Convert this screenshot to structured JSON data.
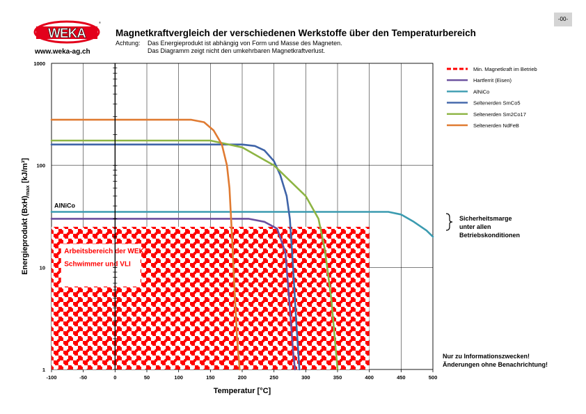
{
  "header": {
    "page_number": "-00-",
    "logo_text": "WEKA",
    "logo_url": "www.weka-ag.ch",
    "title": "Magnetkraftvergleich der verschiedenen Werkstoffe über den Temperaturbereich",
    "note_prefix": "Achtung:",
    "note_line1": "Das Energieprodukt ist abhängig von Form und Masse des Magneten.",
    "note_line2": "Das Diagramm zeigt nicht den umkehrbaren Magnetkraftverlust."
  },
  "colors": {
    "logo_red": "#e3001b",
    "grid": "#000000",
    "min_force": "#ff0000",
    "hartferrit": "#6a4f9e",
    "alnico": "#3b9bb0",
    "smco5": "#3f64a8",
    "sm2co17": "#8db443",
    "ndfeb": "#e07b32",
    "checker_red": "#ff0000",
    "checker_white": "#ffffff"
  },
  "chart_data": {
    "type": "line",
    "xlabel": "Temperatur [°C]",
    "ylabel": "Energieprodukt (BxH)max [kJ/m³]",
    "ylabel_main": "Energieprodukt  (BxH)",
    "ylabel_sub": "max",
    "ylabel_unit": " [kJ/m³]",
    "xlim": [
      -100,
      500
    ],
    "ylim": [
      1,
      1000
    ],
    "yscale": "log",
    "x_ticks": [
      -100,
      -50,
      0,
      50,
      100,
      150,
      200,
      250,
      300,
      350,
      400,
      450,
      500
    ],
    "y_ticks": [
      1,
      10,
      100,
      1000
    ],
    "grid": true,
    "legend_position": "right",
    "series": [
      {
        "name": "Min. Magnetkraft im Betrieb",
        "style": "dashed",
        "color_key": "min_force",
        "points": []
      },
      {
        "name": "Hartferrit (Eisen)",
        "color_key": "hartferrit",
        "points": [
          [
            -100,
            30
          ],
          [
            210,
            30
          ],
          [
            235,
            28
          ],
          [
            255,
            24
          ],
          [
            268,
            14
          ],
          [
            275,
            4
          ],
          [
            280,
            1.5
          ],
          [
            283,
            1
          ]
        ]
      },
      {
        "name": "AlNiCo",
        "color_key": "alnico",
        "points": [
          [
            -100,
            35
          ],
          [
            430,
            35
          ],
          [
            450,
            33
          ],
          [
            470,
            28
          ],
          [
            490,
            23
          ],
          [
            500,
            20
          ]
        ]
      },
      {
        "name": "Seltenerden SmCo5",
        "color_key": "smco5",
        "points": [
          [
            -100,
            160
          ],
          [
            200,
            160
          ],
          [
            220,
            155
          ],
          [
            235,
            140
          ],
          [
            250,
            110
          ],
          [
            260,
            80
          ],
          [
            270,
            50
          ],
          [
            275,
            30
          ],
          [
            280,
            10
          ],
          [
            285,
            3
          ],
          [
            290,
            1
          ]
        ]
      },
      {
        "name": "Seltenerden Sm2Co17",
        "color_key": "sm2co17",
        "points": [
          [
            -100,
            175
          ],
          [
            150,
            175
          ],
          [
            200,
            150
          ],
          [
            250,
            100
          ],
          [
            300,
            50
          ],
          [
            320,
            30
          ],
          [
            330,
            15
          ],
          [
            340,
            5
          ],
          [
            350,
            1
          ]
        ]
      },
      {
        "name": "Seltenerden NdFeB",
        "color_key": "ndfeb",
        "points": [
          [
            -100,
            280
          ],
          [
            120,
            280
          ],
          [
            140,
            265
          ],
          [
            155,
            220
          ],
          [
            168,
            160
          ],
          [
            176,
            100
          ],
          [
            180,
            60
          ],
          [
            184,
            20
          ],
          [
            187,
            8
          ],
          [
            192,
            2
          ],
          [
            196,
            1
          ]
        ]
      }
    ],
    "annotations": {
      "alnico_label": "AlNiCo",
      "work_area_label": [
        "Arbeitsbereich der WEKA-",
        "Schwimmer und VLI"
      ],
      "work_area": {
        "x": [
          -100,
          400
        ],
        "y": [
          1,
          25
        ]
      },
      "safety_margin": [
        "Sicherheitsmarge",
        "unter allen",
        "Betriebskonditionen"
      ],
      "disclaimer": [
        "Nur zu Informationszwecken!",
        "Änderungen ohne Benachrichtung!"
      ]
    }
  }
}
